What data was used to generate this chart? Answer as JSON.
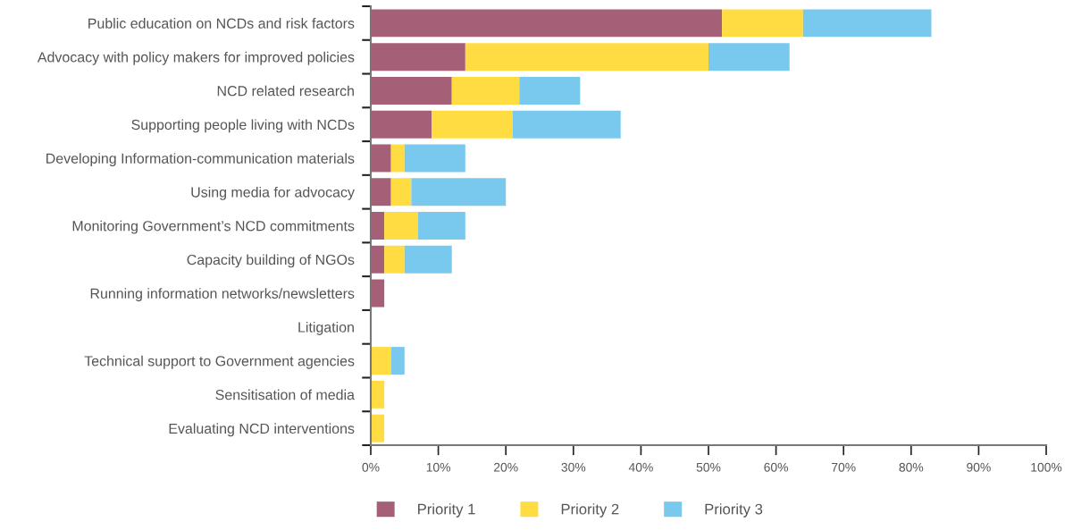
{
  "chart_data": {
    "type": "bar",
    "orientation": "horizontal",
    "stacked": true,
    "categories": [
      "Public education on NCDs and risk factors",
      "Advocacy with policy makers for improved policies",
      "NCD related research",
      "Supporting people living with NCDs",
      "Developing Information-communication materials",
      "Using media for advocacy",
      "Monitoring Government’s NCD commitments",
      "Capacity building of NGOs",
      "Running information networks/newsletters",
      "Litigation",
      "Technical support to Government agencies",
      "Sensitisation of media",
      "Evaluating NCD interventions"
    ],
    "series": [
      {
        "name": "Priority 1",
        "color": "#a56078",
        "values": [
          52,
          14,
          12,
          9,
          3,
          3,
          2,
          2,
          2,
          0,
          0,
          0,
          0
        ]
      },
      {
        "name": "Priority 2",
        "color": "#ffdd42",
        "values": [
          12,
          36,
          10,
          12,
          2,
          3,
          5,
          3,
          0,
          0,
          3,
          2,
          2
        ]
      },
      {
        "name": "Priority 3",
        "color": "#79c9ee",
        "values": [
          19,
          12,
          9,
          16,
          9,
          14,
          7,
          7,
          0,
          0,
          2,
          0,
          0
        ]
      }
    ],
    "xlim": [
      0,
      100
    ],
    "xticks": [
      {
        "value": 0,
        "label": "0%"
      },
      {
        "value": 10,
        "label": "10%"
      },
      {
        "value": 20,
        "label": "20%"
      },
      {
        "value": 30,
        "label": "30%"
      },
      {
        "value": 40,
        "label": "40%"
      },
      {
        "value": 50,
        "label": "50%"
      },
      {
        "value": 60,
        "label": "60%"
      },
      {
        "value": 70,
        "label": "70%"
      },
      {
        "value": 80,
        "label": "80%"
      },
      {
        "value": 90,
        "label": "90%"
      },
      {
        "value": 100,
        "label": "100%"
      }
    ],
    "grid": false,
    "legend": "bottom"
  }
}
